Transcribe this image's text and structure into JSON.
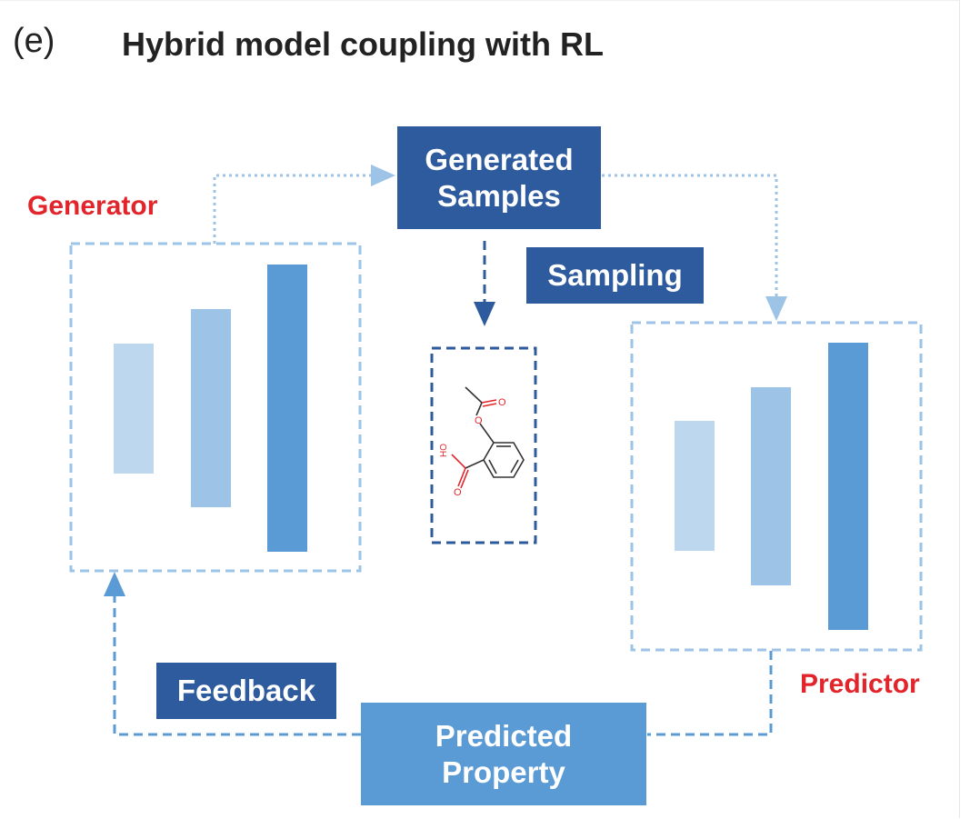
{
  "panel_label": "(e)",
  "title": "Hybrid model coupling with RL",
  "labels": {
    "generator": "Generator",
    "predictor": "Predictor"
  },
  "boxes": {
    "generated_samples": "Generated Samples",
    "sampling": "Sampling",
    "feedback": "Feedback",
    "predicted_property": "Predicted Property"
  },
  "molecule": {
    "atom_labels": [
      "O",
      "O",
      "O",
      "OH"
    ]
  },
  "colors": {
    "dark_blue": "#2e5a9e",
    "mid_blue": "#5b9bd5",
    "light_blue": "#9dc3e6",
    "pale_blue": "#bdd7ee",
    "red": "#e1252b"
  }
}
